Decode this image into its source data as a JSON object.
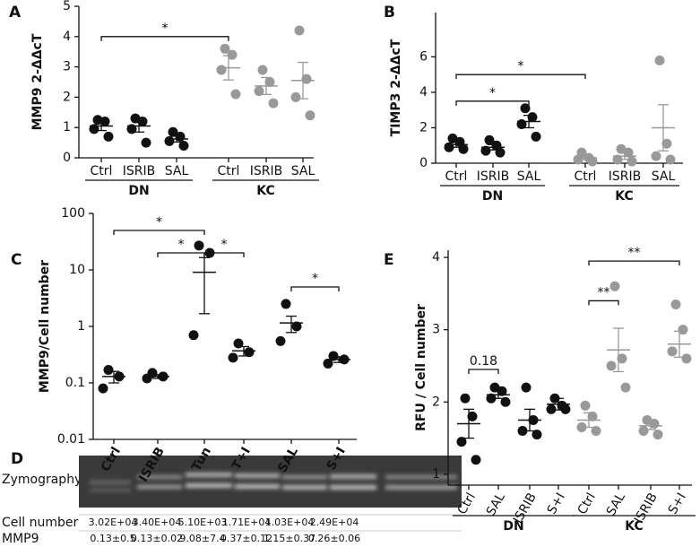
{
  "chart_data": [
    {
      "type": "dotplot",
      "panel": "A",
      "ylabel": "MMP9 2-ΔΔcT",
      "ylim": [
        0,
        5
      ],
      "yticks": [
        0,
        1,
        2,
        3,
        4,
        5
      ],
      "groups": [
        {
          "name": "DN",
          "color": "#111111",
          "categories": [
            "Ctrl",
            "ISRIB",
            "SAL"
          ],
          "points": [
            [
              1.25,
              1.2,
              0.95,
              0.7
            ],
            [
              1.3,
              1.2,
              0.95,
              0.5
            ],
            [
              0.85,
              0.7,
              0.55,
              0.4
            ]
          ],
          "mean": [
            1.05,
            1.05,
            0.62
          ],
          "sem": [
            0.15,
            0.2,
            0.1
          ]
        },
        {
          "name": "KC",
          "color": "#999999",
          "categories": [
            "Ctrl",
            "ISRIB",
            "SAL"
          ],
          "points": [
            [
              3.6,
              3.4,
              2.9,
              2.1
            ],
            [
              2.9,
              2.5,
              2.2,
              1.8
            ],
            [
              4.2,
              2.6,
              2.0,
              1.4
            ]
          ],
          "mean": [
            2.97,
            2.37,
            2.55
          ],
          "sem": [
            0.4,
            0.28,
            0.6
          ]
        }
      ],
      "brackets": [
        {
          "label": "*",
          "from": [
            0,
            0
          ],
          "to": [
            1,
            0
          ],
          "y": 4
        }
      ]
    },
    {
      "type": "dotplot",
      "panel": "B",
      "ylabel": "TIMP3 2-ΔΔcT",
      "ylim": [
        0,
        8.5
      ],
      "yticks": [
        0,
        2,
        4,
        6
      ],
      "groups": [
        {
          "name": "DN",
          "color": "#111111",
          "categories": [
            "Ctrl",
            "ISRIB",
            "SAL"
          ],
          "points": [
            [
              1.4,
              1.2,
              0.9,
              0.8
            ],
            [
              1.3,
              1.0,
              0.7,
              0.6
            ],
            [
              3.1,
              2.6,
              2.2,
              1.5
            ]
          ],
          "mean": [
            1.05,
            0.9,
            2.35
          ],
          "sem": [
            0.15,
            0.15,
            0.35
          ]
        },
        {
          "name": "KC",
          "color": "#999999",
          "categories": [
            "Ctrl",
            "ISRIB",
            "SAL"
          ],
          "points": [
            [
              0.6,
              0.3,
              0.2,
              0.1
            ],
            [
              0.8,
              0.6,
              0.2,
              0.1
            ],
            [
              5.8,
              1.1,
              0.4,
              0.2
            ]
          ],
          "mean": [
            0.3,
            0.4,
            2.0
          ],
          "sem": [
            0.1,
            0.18,
            1.3
          ]
        }
      ],
      "brackets": [
        {
          "label": "*",
          "from": [
            0,
            0
          ],
          "to": [
            1,
            0
          ],
          "y": 5
        },
        {
          "label": "*",
          "from": [
            0,
            0
          ],
          "to": [
            0,
            2
          ],
          "y": 3.5
        }
      ]
    },
    {
      "type": "dotplot",
      "panel": "C",
      "ylabel": "MMP9/Cell number",
      "yscale": "log",
      "ylim": [
        0.01,
        100
      ],
      "yticks": [
        0.01,
        0.1,
        1,
        10,
        100
      ],
      "groups": [
        {
          "color": "#111111",
          "categories": [
            "Ctrl",
            "ISRIB",
            "Tun",
            "T+I",
            "SAL",
            "S+I"
          ],
          "points": [
            [
              0.17,
              0.13,
              0.08
            ],
            [
              0.15,
              0.13,
              0.12
            ],
            [
              27,
              20,
              0.7
            ],
            [
              0.5,
              0.35,
              0.28
            ],
            [
              2.5,
              1.0,
              0.55
            ],
            [
              0.3,
              0.26,
              0.22
            ]
          ],
          "mean": [
            0.13,
            0.13,
            9.08,
            0.37,
            1.15,
            0.26
          ],
          "sem": [
            0.03,
            0.01,
            7.4,
            0.07,
            0.37,
            0.03
          ]
        }
      ],
      "brackets": [
        {
          "label": "*",
          "from": [
            0,
            0
          ],
          "to": [
            0,
            2
          ],
          "y": 50
        },
        {
          "label": "*",
          "from": [
            0,
            1
          ],
          "to": [
            0,
            2
          ],
          "y": 20
        },
        {
          "label": "*",
          "from": [
            0,
            2
          ],
          "to": [
            0,
            3
          ],
          "y": 20
        },
        {
          "label": "*",
          "from": [
            0,
            4
          ],
          "to": [
            0,
            5
          ],
          "y": 5
        }
      ]
    },
    {
      "type": "dotplot",
      "panel": "E",
      "ylabel": "RFU / Cell number",
      "ylim": [
        0.85,
        4.1
      ],
      "yticks": [
        1,
        2,
        3,
        4
      ],
      "groups": [
        {
          "name": "DN",
          "color": "#111111",
          "categories": [
            "Ctrl",
            "SAL",
            "ISRIB",
            "S+I"
          ],
          "points": [
            [
              2.05,
              1.8,
              1.45,
              1.2
            ],
            [
              2.2,
              2.15,
              2.05,
              2.0
            ],
            [
              2.2,
              1.75,
              1.6,
              1.55
            ],
            [
              2.05,
              1.95,
              1.9,
              1.9
            ]
          ],
          "mean": [
            1.7,
            2.1,
            1.75,
            1.97
          ],
          "sem": [
            0.2,
            0.05,
            0.15,
            0.08
          ]
        },
        {
          "name": "KC",
          "color": "#999999",
          "categories": [
            "Ctrl",
            "SAL",
            "ISRIB",
            "S+I"
          ],
          "points": [
            [
              1.95,
              1.8,
              1.65,
              1.6
            ],
            [
              3.6,
              2.6,
              2.5,
              2.2
            ],
            [
              1.75,
              1.7,
              1.6,
              1.55
            ],
            [
              3.35,
              3.0,
              2.7,
              2.6
            ]
          ],
          "mean": [
            1.75,
            2.72,
            1.67,
            2.8
          ],
          "sem": [
            0.1,
            0.3,
            0.05,
            0.18
          ]
        }
      ],
      "brackets": [
        {
          "label": "0.18",
          "from": [
            0,
            0
          ],
          "to": [
            0,
            1
          ],
          "y": 2.45
        },
        {
          "label": "**",
          "from": [
            1,
            0
          ],
          "to": [
            1,
            1
          ],
          "y": 3.4
        },
        {
          "label": "**",
          "from": [
            1,
            0
          ],
          "to": [
            1,
            3
          ],
          "y": 3.95
        }
      ]
    }
  ],
  "zymography": {
    "panel": "D",
    "label": "Zymography",
    "rows": [
      {
        "label": "Cell number",
        "cells": [
          "3.02E+04",
          "3.40E+04",
          "5.10E+03",
          "1.71E+04",
          "1.03E+04",
          "2.49E+04"
        ]
      },
      {
        "label": "MMP9",
        "cells": [
          "0.13±0.5",
          "0.13±0.02",
          "9.08±7.4",
          "0.37±0.12",
          "1.15±0.37",
          "0.26±0.06"
        ]
      }
    ]
  }
}
